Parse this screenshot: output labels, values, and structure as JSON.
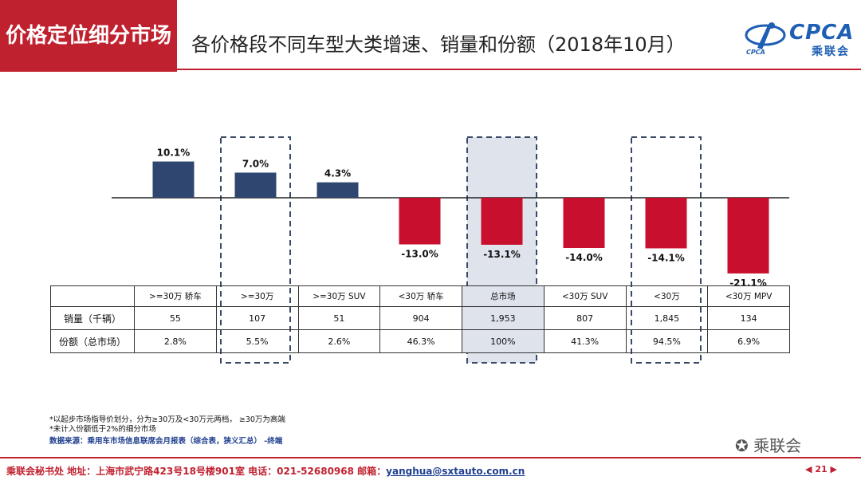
{
  "header": {
    "badge": "价格定位细分市场",
    "title": "各价格段不同车型大类增速、销量和份额（2018年10月）",
    "logo_latin": "CPCA",
    "logo_cn": "乘联会",
    "logo_sub": "CPCA"
  },
  "chart_data": {
    "type": "bar",
    "categories": [
      ">=30万 轿车",
      ">=30万",
      ">=30万 SUV",
      "<30万 轿车",
      "总市场",
      "<30万 SUV",
      "<30万",
      "<30万 MPV"
    ],
    "values": [
      10.1,
      7.0,
      4.3,
      -13.0,
      -13.1,
      -14.0,
      -14.1,
      -21.1
    ],
    "value_labels": [
      "10.1%",
      "7.0%",
      "4.3%",
      "-13.0%",
      "-13.1%",
      "-14.0%",
      "-14.1%",
      "-21.1%"
    ],
    "title": "",
    "xlabel": "",
    "ylabel": "",
    "ylim": [
      -22,
      12
    ],
    "highlighted_categories": [
      ">=30万",
      "总市场",
      "<30万"
    ],
    "shaded_categories": [
      "总市场"
    ],
    "positive_color": "#2f4670",
    "negative_color": "#c8102e"
  },
  "table": {
    "header": [
      ">=30万 轿车",
      ">=30万",
      ">=30万 SUV",
      "<30万 轿车",
      "总市场",
      "<30万 SUV",
      "<30万",
      "<30万 MPV"
    ],
    "rows": [
      {
        "label": "销量（千辆）",
        "values": [
          "55",
          "107",
          "51",
          "904",
          "1,953",
          "807",
          "1,845",
          "134"
        ]
      },
      {
        "label": "份额（总市场）",
        "values": [
          "2.8%",
          "5.5%",
          "2.6%",
          "46.3%",
          "100%",
          "41.3%",
          "94.5%",
          "6.9%"
        ]
      }
    ]
  },
  "notes": {
    "line1": "*以起步市场指导价划分，分为≥30万及<30万元两档，   ≥30万为高端",
    "line2": "*未计入份额低于2%的细分市场",
    "source": "数据来源：乘用车市场信息联席会月报表（综合表，狭义汇总）  -终端"
  },
  "watermark": "乘联会",
  "footer": {
    "text": "乘联会秘书处   地址：上海市武宁路423号18号楼901室  电话：021-52680968   邮箱：",
    "email": "yanghua@sxtauto.com.cn",
    "page": "21"
  }
}
